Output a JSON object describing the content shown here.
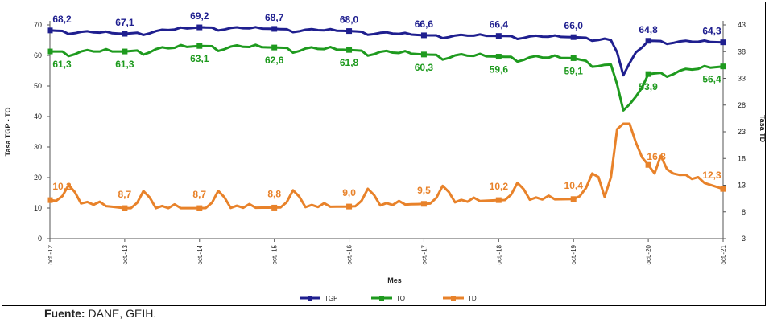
{
  "source": {
    "label": "Fuente:",
    "text": " DANE, GEIH."
  },
  "chart_data": {
    "type": "line",
    "xlabel": "Mes",
    "ylabel_left": "Tasa TGP - TO",
    "ylabel_right": "Tasa TD",
    "ylim_left": [
      0,
      70
    ],
    "ylim_right": [
      3,
      43
    ],
    "yticks_left": [
      0,
      10,
      20,
      30,
      40,
      50,
      60,
      70
    ],
    "yticks_right": [
      3,
      8,
      13,
      18,
      23,
      28,
      33,
      38,
      43
    ],
    "categories": [
      "oct.-12",
      "oct.-13",
      "oct.-14",
      "oct.-15",
      "oct.-16",
      "oct.-17",
      "oct.-18",
      "oct.-19",
      "oct.-20",
      "oct.-21"
    ],
    "grid": false,
    "legend_position": "bottom",
    "series": [
      {
        "name": "TGP",
        "axis": "left",
        "color": "#1f1f8f",
        "values": [
          68.2,
          67.1,
          69.2,
          68.7,
          68.0,
          66.6,
          66.4,
          66.0,
          64.8,
          64.3
        ],
        "labels": [
          "68,2",
          "67,1",
          "69,2",
          "68,7",
          "68,0",
          "66,6",
          "66,4",
          "66,0",
          "64,8",
          "64,3"
        ],
        "trough": 53.5
      },
      {
        "name": "TO",
        "axis": "left",
        "color": "#1e9a1e",
        "values": [
          61.3,
          61.3,
          63.1,
          62.6,
          61.8,
          60.3,
          59.6,
          59.1,
          53.9,
          56.4
        ],
        "labels": [
          "61,3",
          "61,3",
          "63,1",
          "62,6",
          "61,8",
          "60,3",
          "59,6",
          "59,1",
          "53,9",
          "56,4"
        ],
        "trough": 42.0
      },
      {
        "name": "TD",
        "axis": "right",
        "color": "#e8822a",
        "values": [
          10.2,
          8.7,
          8.7,
          8.8,
          9.0,
          9.5,
          10.2,
          10.4,
          16.8,
          12.3
        ],
        "labels": [
          "10,2",
          "8,7",
          "8,7",
          "8,8",
          "9,0",
          "9,5",
          "10,2",
          "10,4",
          "16,8",
          "12,3"
        ],
        "peak": 24.5
      }
    ]
  }
}
